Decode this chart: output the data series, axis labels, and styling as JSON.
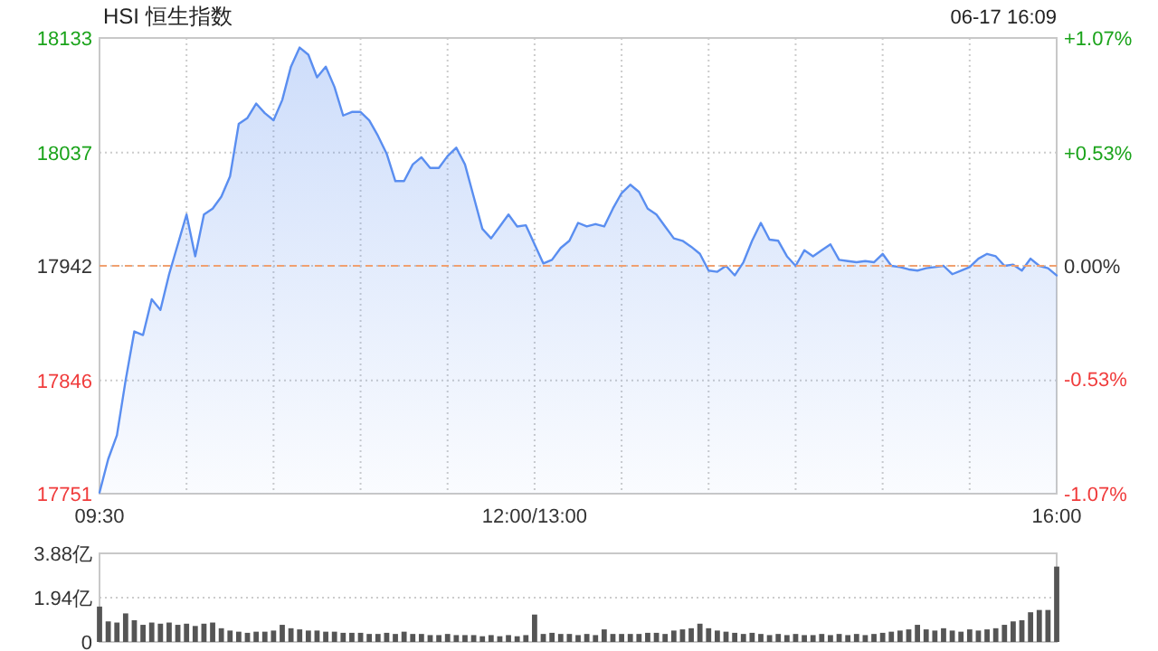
{
  "chart_data": [
    {
      "type": "area",
      "title": "HSI 恒生指数",
      "subtitle": "06-17 16:09",
      "categories": [
        "09:30",
        null,
        null,
        null,
        null,
        null,
        null,
        null,
        null,
        null,
        null,
        null,
        null,
        null,
        null,
        null,
        null,
        null,
        null,
        null,
        null,
        null,
        null,
        null,
        null,
        null,
        null,
        null,
        null,
        null,
        null,
        null,
        null,
        null,
        null,
        null,
        null,
        null,
        null,
        null,
        null,
        null,
        null,
        null,
        null,
        null,
        null,
        null,
        null,
        null,
        "12:00/13:00",
        null,
        null,
        null,
        null,
        null,
        null,
        null,
        null,
        null,
        null,
        null,
        null,
        null,
        null,
        null,
        null,
        null,
        null,
        null,
        null,
        null,
        null,
        null,
        null,
        null,
        null,
        null,
        null,
        null,
        null,
        null,
        null,
        null,
        null,
        null,
        null,
        null,
        null,
        null,
        null,
        null,
        null,
        null,
        null,
        null,
        null,
        null,
        null,
        null,
        null,
        null,
        null,
        null,
        null,
        null,
        null,
        null,
        null,
        null,
        "16:00"
      ],
      "series": [
        {
          "color": "#5a8ef0",
          "values": [
            17752,
            17780,
            17800,
            17846,
            17887,
            17884,
            17914,
            17905,
            17935,
            17960,
            17985,
            17950,
            17985,
            17990,
            18000,
            18017,
            18061,
            18066,
            18078,
            18070,
            18064,
            18081,
            18109,
            18125,
            18119,
            18100,
            18109,
            18092,
            18068,
            18071,
            18071,
            18064,
            18051,
            18036,
            18013,
            18013,
            18027,
            18033,
            18024,
            18024,
            18034,
            18041,
            18027,
            18000,
            17973,
            17965,
            17975,
            17985,
            17975,
            17976,
            17960,
            17944,
            17947,
            17957,
            17963,
            17978,
            17975,
            17977,
            17975,
            17990,
            18003,
            18010,
            18004,
            17990,
            17985,
            17975,
            17965,
            17963,
            17958,
            17952,
            17938,
            17937,
            17942,
            17934,
            17945,
            17963,
            17978,
            17964,
            17963,
            17950,
            17942,
            17955,
            17950,
            17955,
            17960,
            17947,
            17946,
            17945,
            17946,
            17945,
            17952,
            17942,
            17941,
            17939,
            17938,
            17940,
            17941,
            17942,
            17935,
            17938,
            17941,
            17948,
            17952,
            17950,
            17942,
            17943,
            17938,
            17948,
            17942,
            17940,
            17934
          ]
        }
      ],
      "ylim": [
        17751,
        18133
      ],
      "yticks": [
        17751,
        17846,
        17942,
        18037,
        18133
      ],
      "y2lim": [
        -1.07,
        1.07
      ],
      "y2ticks": [
        {
          "value": -1.07,
          "label": "-1.07%"
        },
        {
          "value": -0.53,
          "label": "-0.53%"
        },
        {
          "value": 0,
          "label": "0.00%"
        },
        {
          "value": 0.53,
          "label": "+0.53%"
        },
        {
          "value": 1.07,
          "label": "+1.07%"
        }
      ],
      "ref_lines": [
        {
          "axis": "y",
          "value": 17942,
          "color": "#f0a070",
          "line_style": "dashed"
        }
      ],
      "grid": true,
      "marker": "none",
      "line_style": "solid"
    },
    {
      "type": "bar",
      "tick_labels": "y",
      "categories": [
        null,
        null,
        null,
        null,
        null,
        null,
        null,
        null,
        null,
        null,
        null,
        null,
        null,
        null,
        null,
        null,
        null,
        null,
        null,
        null,
        null,
        null,
        null,
        null,
        null,
        null,
        null,
        null,
        null,
        null,
        null,
        null,
        null,
        null,
        null,
        null,
        null,
        null,
        null,
        null,
        null,
        null,
        null,
        null,
        null,
        null,
        null,
        null,
        null,
        null,
        null,
        null,
        null,
        null,
        null,
        null,
        null,
        null,
        null,
        null,
        null,
        null,
        null,
        null,
        null,
        null,
        null,
        null,
        null,
        null,
        null,
        null,
        null,
        null,
        null,
        null,
        null,
        null,
        null,
        null,
        null,
        null,
        null,
        null,
        null,
        null,
        null,
        null,
        null,
        null,
        null,
        null,
        null,
        null,
        null,
        null,
        null,
        null,
        null,
        null,
        null,
        null,
        null,
        null,
        null,
        null,
        null,
        null,
        null,
        null,
        null
      ],
      "series": [
        {
          "color": "#555555",
          "values": [
            1.55,
            0.9,
            0.85,
            1.25,
            0.95,
            0.75,
            0.85,
            0.8,
            0.85,
            0.75,
            0.8,
            0.7,
            0.8,
            0.85,
            0.6,
            0.5,
            0.45,
            0.4,
            0.45,
            0.45,
            0.5,
            0.75,
            0.6,
            0.55,
            0.5,
            0.5,
            0.45,
            0.45,
            0.4,
            0.4,
            0.4,
            0.35,
            0.35,
            0.4,
            0.35,
            0.45,
            0.35,
            0.35,
            0.3,
            0.3,
            0.35,
            0.3,
            0.3,
            0.3,
            0.25,
            0.3,
            0.25,
            0.3,
            0.25,
            0.3,
            1.2,
            0.35,
            0.4,
            0.35,
            0.35,
            0.3,
            0.35,
            0.3,
            0.55,
            0.35,
            0.35,
            0.35,
            0.35,
            0.4,
            0.4,
            0.35,
            0.5,
            0.55,
            0.6,
            0.8,
            0.6,
            0.5,
            0.45,
            0.4,
            0.35,
            0.4,
            0.35,
            0.3,
            0.35,
            0.3,
            0.35,
            0.3,
            0.3,
            0.35,
            0.3,
            0.35,
            0.3,
            0.35,
            0.3,
            0.35,
            0.4,
            0.45,
            0.5,
            0.55,
            0.75,
            0.55,
            0.5,
            0.6,
            0.5,
            0.45,
            0.55,
            0.5,
            0.55,
            0.6,
            0.75,
            0.9,
            0.95,
            1.3,
            1.4,
            1.4,
            3.3
          ]
        }
      ],
      "ylim": [
        0,
        3.88
      ],
      "yticks": [
        0,
        {
          "value": 1.94,
          "label": "1.94亿"
        },
        {
          "value": 3.88,
          "label": "3.88亿"
        }
      ],
      "grid": "y"
    }
  ]
}
